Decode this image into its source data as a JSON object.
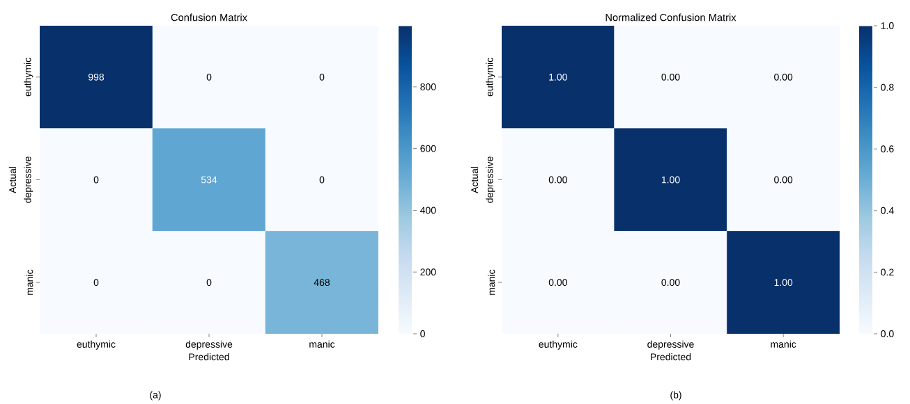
{
  "chart_data": [
    {
      "type": "heatmap",
      "title": "Confusion Matrix",
      "xlabel": "Predicted",
      "ylabel": "Actual",
      "categories": [
        "euthymic",
        "depressive",
        "manic"
      ],
      "y_categories": [
        "euthymic",
        "depressive",
        "manic"
      ],
      "cells": [
        [
          998,
          0,
          0
        ],
        [
          0,
          534,
          0
        ],
        [
          0,
          0,
          468
        ]
      ],
      "data_labels": true,
      "clim": [
        0,
        998
      ],
      "cticks": [
        0,
        200,
        400,
        600,
        800
      ],
      "annotations": [
        "(a)"
      ]
    },
    {
      "type": "heatmap",
      "title": "Normalized Confusion Matrix",
      "xlabel": "Predicted",
      "ylabel": "Actual",
      "categories": [
        "euthymic",
        "depressive",
        "manic"
      ],
      "y_categories": [
        "euthymic",
        "depressive",
        "manic"
      ],
      "cells": [
        [
          1.0,
          0.0,
          0.0
        ],
        [
          0.0,
          1.0,
          0.0
        ],
        [
          0.0,
          0.0,
          1.0
        ]
      ],
      "cell_labels": [
        [
          "1.00",
          "0.00",
          "0.00"
        ],
        [
          "0.00",
          "1.00",
          "0.00"
        ],
        [
          "0.00",
          "0.00",
          "1.00"
        ]
      ],
      "clim": [
        0,
        1
      ],
      "cticks": [
        {
          "value": 0,
          "label": "0.0"
        },
        {
          "value": 0.2,
          "label": "0.2"
        },
        {
          "value": 0.4,
          "label": "0.4"
        },
        {
          "value": 0.6,
          "label": "0.6"
        },
        {
          "value": 0.8,
          "label": "0.8"
        },
        {
          "value": 1,
          "label": "1.0"
        }
      ],
      "annotations": [
        "(b)"
      ]
    }
  ]
}
